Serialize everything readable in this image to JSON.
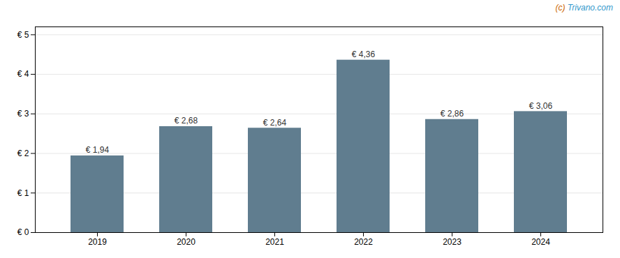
{
  "chart_data": {
    "type": "bar",
    "categories": [
      "2019",
      "2020",
      "2021",
      "2022",
      "2023",
      "2024"
    ],
    "values": [
      1.94,
      2.68,
      2.64,
      4.36,
      2.86,
      3.06
    ],
    "value_labels": [
      "€ 1,94",
      "€ 2,68",
      "€ 2,64",
      "€ 4,36",
      "€ 2,86",
      "€ 3,06"
    ],
    "data_labels": true,
    "color": "#607d8f",
    "ylim": [
      0,
      5.2
    ],
    "yticks": [
      {
        "value": 0,
        "label": "€ 0"
      },
      {
        "value": 1,
        "label": "€ 1"
      },
      {
        "value": 2,
        "label": "€ 2"
      },
      {
        "value": 3,
        "label": "€ 3"
      },
      {
        "value": 4,
        "label": "€ 4"
      },
      {
        "value": 5,
        "label": "€ 5"
      }
    ],
    "grid": true,
    "annotations": [
      {
        "text": "(c) ",
        "color": "#cc6600"
      },
      {
        "text": "Trivano.com",
        "color": "#3399cc"
      }
    ]
  }
}
